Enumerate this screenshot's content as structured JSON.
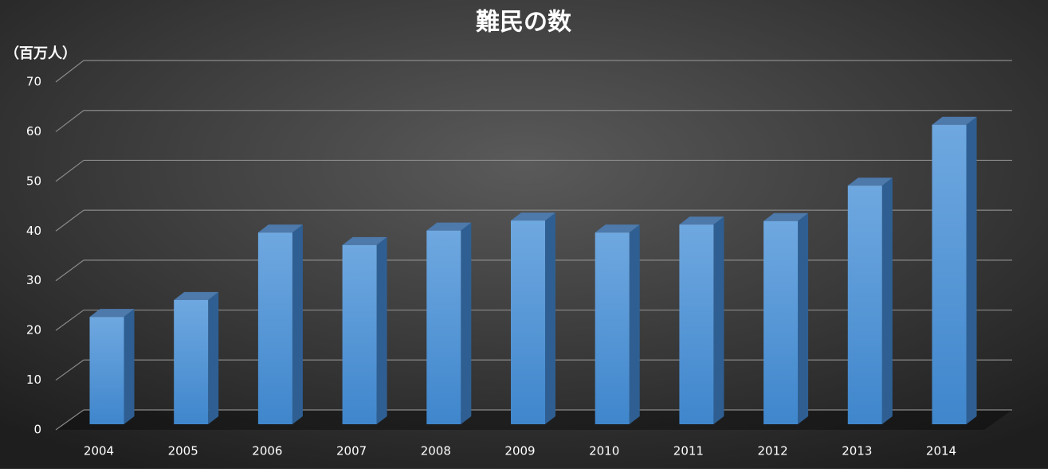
{
  "chart_data": {
    "type": "bar",
    "title": "難民の数",
    "y_label": "（百万人）",
    "categories": [
      "2004",
      "2005",
      "2006",
      "2007",
      "2008",
      "2009",
      "2010",
      "2011",
      "2012",
      "2013",
      "2014"
    ],
    "values": [
      21.5,
      24.9,
      38.4,
      35.9,
      38.8,
      40.8,
      38.4,
      40.0,
      40.7,
      47.8,
      60.0
    ],
    "color": "#5b9bd5",
    "ylim": [
      0,
      70
    ],
    "yticks": [
      0,
      10,
      20,
      30,
      40,
      50,
      60,
      70
    ],
    "grid": true
  }
}
